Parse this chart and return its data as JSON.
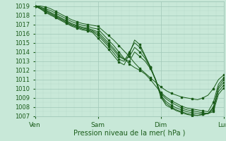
{
  "title": "",
  "xlabel": "Pression niveau de la mer( hPa )",
  "ylim": [
    1007,
    1019.5
  ],
  "xlim": [
    0,
    72
  ],
  "yticks": [
    1007,
    1008,
    1009,
    1010,
    1011,
    1012,
    1013,
    1014,
    1015,
    1016,
    1017,
    1018,
    1019
  ],
  "xtick_positions": [
    0,
    24,
    48,
    72
  ],
  "xtick_labels": [
    "Ven",
    "Sam",
    "Dim",
    "Lun"
  ],
  "bg_color": "#c8e8d8",
  "grid_major_color": "#a0c8b8",
  "grid_minor_color": "#b8daca",
  "line_color": "#1a5c1a",
  "line_width": 0.7,
  "markersize": 1.8,
  "lines": [
    [
      0,
      1019,
      2,
      1019,
      4,
      1018.9,
      6,
      1018.7,
      8,
      1018.4,
      10,
      1018.1,
      12,
      1017.8,
      14,
      1017.5,
      16,
      1017.3,
      18,
      1017.1,
      20,
      1017.0,
      22,
      1016.9,
      24,
      1016.8,
      26,
      1016.3,
      28,
      1015.8,
      30,
      1015.3,
      32,
      1014.7,
      34,
      1014.1,
      36,
      1013.5,
      38,
      1012.8,
      40,
      1012.2,
      42,
      1011.7,
      44,
      1011.2,
      46,
      1010.7,
      48,
      1010.2,
      50,
      1009.8,
      52,
      1009.5,
      54,
      1009.3,
      56,
      1009.1,
      58,
      1009.0,
      60,
      1008.9,
      62,
      1008.8,
      64,
      1009.0,
      66,
      1009.3,
      68,
      1010.0,
      70,
      1011.0,
      72,
      1011.5
    ],
    [
      0,
      1019,
      2,
      1018.9,
      4,
      1018.7,
      6,
      1018.5,
      8,
      1018.2,
      10,
      1017.9,
      12,
      1017.6,
      14,
      1017.3,
      16,
      1017.1,
      18,
      1016.9,
      20,
      1016.8,
      22,
      1016.6,
      24,
      1016.5,
      26,
      1015.9,
      28,
      1015.3,
      30,
      1014.7,
      32,
      1014.0,
      34,
      1013.3,
      36,
      1012.7,
      38,
      1012.3,
      40,
      1012.0,
      42,
      1011.6,
      44,
      1011.0,
      46,
      1010.3,
      48,
      1009.6,
      50,
      1009.1,
      52,
      1008.7,
      54,
      1008.4,
      56,
      1008.1,
      58,
      1007.9,
      60,
      1007.8,
      62,
      1007.7,
      64,
      1007.6,
      66,
      1007.5,
      68,
      1008.5,
      70,
      1010.5,
      72,
      1011.2
    ],
    [
      0,
      1019,
      2,
      1018.8,
      4,
      1018.6,
      6,
      1018.3,
      8,
      1018.0,
      10,
      1017.7,
      12,
      1017.4,
      14,
      1017.1,
      16,
      1016.9,
      18,
      1016.7,
      20,
      1016.6,
      22,
      1016.4,
      24,
      1016.2,
      26,
      1015.6,
      28,
      1015.0,
      30,
      1014.4,
      32,
      1013.7,
      34,
      1013.2,
      36,
      1013.0,
      38,
      1014.0,
      40,
      1013.5,
      42,
      1013.0,
      44,
      1012.2,
      46,
      1011.0,
      48,
      1009.5,
      50,
      1008.9,
      52,
      1008.5,
      54,
      1008.2,
      56,
      1007.9,
      58,
      1007.7,
      60,
      1007.6,
      62,
      1007.5,
      64,
      1007.4,
      66,
      1007.3,
      68,
      1008.0,
      70,
      1010.2,
      72,
      1011.0
    ],
    [
      0,
      1019,
      2,
      1018.8,
      4,
      1018.5,
      6,
      1018.2,
      8,
      1017.9,
      10,
      1017.6,
      12,
      1017.3,
      14,
      1017.0,
      16,
      1016.8,
      18,
      1016.6,
      20,
      1016.5,
      22,
      1016.3,
      24,
      1016.0,
      26,
      1015.4,
      28,
      1014.8,
      30,
      1014.2,
      32,
      1013.5,
      34,
      1013.2,
      36,
      1013.5,
      38,
      1014.5,
      40,
      1014.0,
      42,
      1013.3,
      44,
      1012.3,
      46,
      1011.0,
      48,
      1009.3,
      50,
      1008.6,
      52,
      1008.2,
      54,
      1007.9,
      56,
      1007.7,
      58,
      1007.5,
      60,
      1007.4,
      62,
      1007.3,
      64,
      1007.3,
      66,
      1007.3,
      68,
      1007.9,
      70,
      1010.0,
      72,
      1010.7
    ],
    [
      0,
      1019,
      2,
      1018.7,
      4,
      1018.4,
      6,
      1018.1,
      8,
      1017.8,
      10,
      1017.5,
      12,
      1017.2,
      14,
      1016.9,
      16,
      1016.7,
      18,
      1016.5,
      20,
      1016.4,
      22,
      1016.2,
      24,
      1015.8,
      26,
      1015.2,
      28,
      1014.6,
      30,
      1013.9,
      32,
      1013.2,
      34,
      1013.0,
      36,
      1014.0,
      38,
      1015.0,
      40,
      1014.5,
      42,
      1013.5,
      44,
      1012.4,
      46,
      1011.0,
      48,
      1009.2,
      50,
      1008.4,
      52,
      1008.0,
      54,
      1007.7,
      56,
      1007.5,
      58,
      1007.3,
      60,
      1007.2,
      62,
      1007.1,
      64,
      1007.2,
      66,
      1007.3,
      68,
      1007.7,
      70,
      1009.7,
      72,
      1010.4
    ],
    [
      0,
      1019,
      2,
      1018.7,
      4,
      1018.3,
      6,
      1018.0,
      8,
      1017.7,
      10,
      1017.4,
      12,
      1017.1,
      14,
      1016.8,
      16,
      1016.6,
      18,
      1016.4,
      20,
      1016.3,
      22,
      1016.1,
      24,
      1015.5,
      26,
      1014.9,
      28,
      1014.3,
      30,
      1013.6,
      32,
      1012.9,
      34,
      1012.6,
      36,
      1013.8,
      38,
      1015.3,
      40,
      1014.8,
      42,
      1013.6,
      44,
      1012.4,
      46,
      1010.9,
      48,
      1009.1,
      50,
      1008.2,
      52,
      1007.9,
      54,
      1007.6,
      56,
      1007.4,
      58,
      1007.2,
      60,
      1007.1,
      62,
      1007.1,
      64,
      1007.2,
      66,
      1007.3,
      68,
      1007.5,
      70,
      1009.4,
      72,
      1010.1
    ]
  ]
}
